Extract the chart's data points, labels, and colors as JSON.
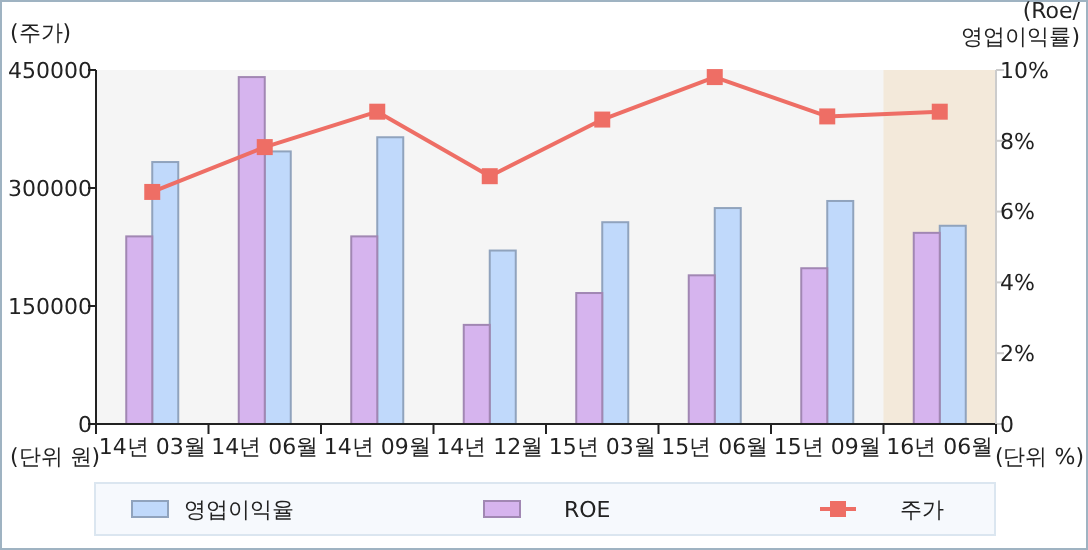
{
  "chart_data": {
    "type": "bar",
    "categories": [
      "14년 03월",
      "14년 06월",
      "14년 09월",
      "14년 12월",
      "15년 03월",
      "15년 06월",
      "15년 09월",
      "16년 06월"
    ],
    "series": [
      {
        "name": "영업이익율",
        "color": "#c0d9fb",
        "axis": "y2",
        "values": [
          7.4,
          7.7,
          8.1,
          4.9,
          5.7,
          6.1,
          6.3,
          5.6
        ]
      },
      {
        "name": "ROE",
        "color": "#d6b4ee",
        "axis": "y2",
        "values": [
          5.3,
          9.8,
          5.3,
          2.8,
          3.7,
          4.2,
          4.4,
          5.4
        ]
      },
      {
        "name": "주가",
        "type": "line",
        "color": "#ee6e65",
        "values": [
          295000,
          352000,
          397000,
          315000,
          387000,
          441000,
          391000,
          397000
        ]
      }
    ],
    "ylabel": "(주가)",
    "y2label": "(Roe/\n영업이익률)",
    "ylim": [
      0,
      450000
    ],
    "yticks": [
      0,
      150000,
      300000,
      450000
    ],
    "y2lim": [
      0,
      10
    ],
    "y2ticks": [
      0,
      {
        "value": 2,
        "label": "2%"
      },
      {
        "value": 4,
        "label": "4%"
      },
      {
        "value": 6,
        "label": "6%"
      },
      {
        "value": 8,
        "label": "8%"
      },
      {
        "value": 10,
        "label": "10%"
      }
    ],
    "annotations": [
      "(단위  원)",
      "(단위  %)"
    ],
    "bands": [
      {
        "axis": "x",
        "from": "16년 06월",
        "to": "16년 06월",
        "color": "#f3e9da"
      }
    ],
    "marker": "square",
    "legend": "bottom",
    "grid": false
  }
}
